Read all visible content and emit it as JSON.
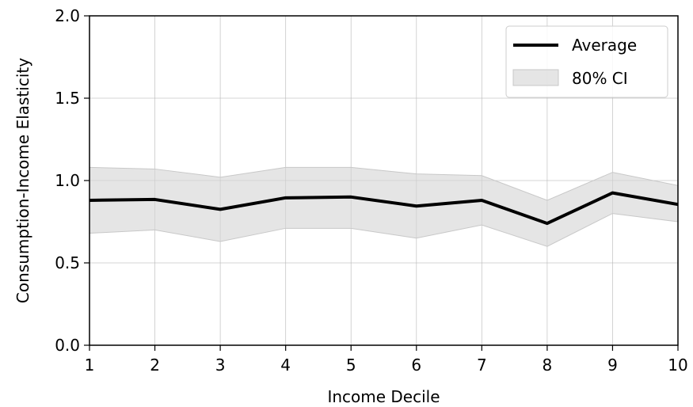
{
  "chart_data": {
    "type": "line",
    "x": [
      1,
      2,
      3,
      4,
      5,
      6,
      7,
      8,
      9,
      10
    ],
    "series": [
      {
        "name": "Average",
        "values": [
          0.88,
          0.885,
          0.825,
          0.895,
          0.9,
          0.845,
          0.88,
          0.74,
          0.925,
          0.855
        ],
        "color": "#000000"
      }
    ],
    "band": {
      "name": "80% CI",
      "lower": [
        0.68,
        0.7,
        0.63,
        0.71,
        0.71,
        0.65,
        0.73,
        0.6,
        0.8,
        0.75
      ],
      "upper": [
        1.08,
        1.07,
        1.02,
        1.08,
        1.08,
        1.04,
        1.03,
        0.88,
        1.05,
        0.97
      ],
      "color": "#d3d3d3"
    },
    "xlabel": "Income Decile",
    "ylabel": "Consumption-Income Elasticity",
    "xlim": [
      1,
      10
    ],
    "ylim": [
      0.0,
      2.0
    ],
    "xticks": [
      "1",
      "2",
      "3",
      "4",
      "5",
      "6",
      "7",
      "8",
      "9",
      "10"
    ],
    "yticks": [
      "0.0",
      "0.5",
      "1.0",
      "1.5",
      "2.0"
    ],
    "grid": true,
    "legend_position": "top-right"
  }
}
